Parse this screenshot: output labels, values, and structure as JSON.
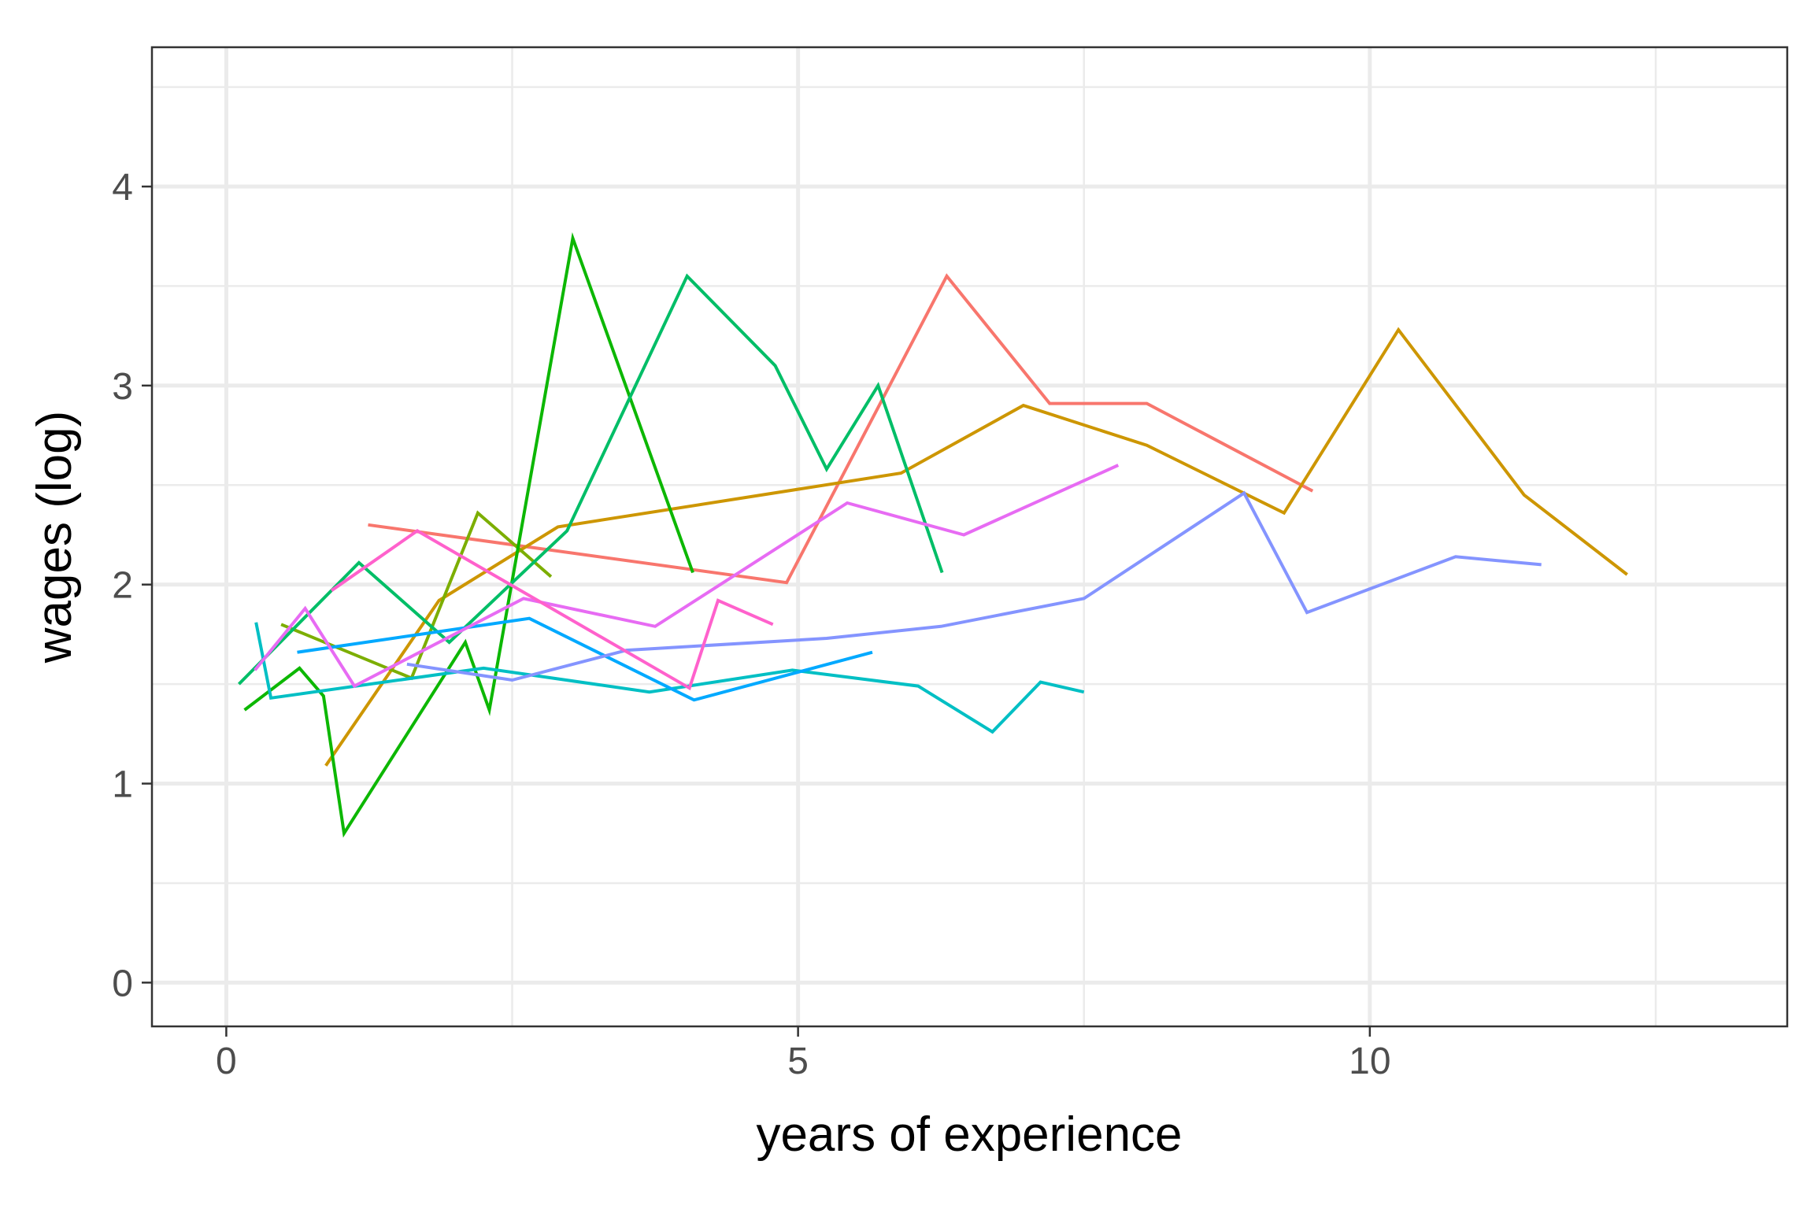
{
  "chart_data": {
    "type": "line",
    "title": "",
    "xlabel": "years of experience",
    "ylabel": "wages (log)",
    "xlim": [
      -0.65,
      13.65
    ],
    "ylim": [
      -0.22,
      4.7
    ],
    "x_ticks": [
      0,
      5,
      10
    ],
    "y_ticks": [
      0,
      1,
      2,
      3,
      4
    ],
    "grid": true,
    "legend": "none",
    "series": [
      {
        "color": "#F8766D",
        "x": [
          1.24,
          4.9,
          6.3,
          7.2,
          8.05,
          9.5
        ],
        "y": [
          2.3,
          2.01,
          3.55,
          2.91,
          2.91,
          2.47
        ]
      },
      {
        "color": "#CD9600",
        "x": [
          0.87,
          1.86,
          2.9,
          5.9,
          6.97,
          8.05,
          9.25,
          10.25,
          11.35,
          12.25
        ],
        "y": [
          1.09,
          1.92,
          2.29,
          2.56,
          2.9,
          2.7,
          2.36,
          3.28,
          2.45,
          2.05
        ]
      },
      {
        "color": "#7CAE00",
        "x": [
          0.48,
          1.62,
          2.2,
          2.84
        ],
        "y": [
          1.8,
          1.53,
          2.36,
          2.04
        ]
      },
      {
        "color": "#0CB702",
        "x": [
          0.16,
          0.64,
          0.85,
          1.03,
          2.09,
          2.3,
          3.03,
          4.08
        ],
        "y": [
          1.37,
          1.58,
          1.44,
          0.75,
          1.71,
          1.37,
          3.74,
          2.06
        ]
      },
      {
        "color": "#00BE67",
        "x": [
          0.11,
          1.16,
          1.95,
          2.98,
          4.03,
          4.8,
          5.25,
          5.7,
          6.26
        ],
        "y": [
          1.5,
          2.11,
          1.71,
          2.27,
          3.55,
          3.1,
          2.58,
          3.0,
          2.06
        ]
      },
      {
        "color": "#00BFC4",
        "x": [
          0.26,
          0.39,
          2.25,
          3.7,
          4.95,
          6.05,
          6.7,
          7.12,
          7.5
        ],
        "y": [
          1.81,
          1.43,
          1.58,
          1.46,
          1.57,
          1.49,
          1.26,
          1.51,
          1.46
        ]
      },
      {
        "color": "#00A9FF",
        "x": [
          0.62,
          2.65,
          4.09,
          5.65
        ],
        "y": [
          1.66,
          1.83,
          1.42,
          1.66
        ]
      },
      {
        "color": "#8494FF",
        "x": [
          1.58,
          2.5,
          3.5,
          5.25,
          6.25,
          7.5,
          8.9,
          9.45,
          10.75,
          11.5
        ],
        "y": [
          1.6,
          1.52,
          1.67,
          1.73,
          1.79,
          1.93,
          2.46,
          1.86,
          2.14,
          2.1
        ]
      },
      {
        "color": "#E76BF3",
        "x": [
          0.25,
          0.69,
          1.12,
          2.6,
          3.75,
          5.43,
          6.45,
          7.8
        ],
        "y": [
          1.57,
          1.88,
          1.49,
          1.93,
          1.79,
          2.41,
          2.25,
          2.6
        ]
      },
      {
        "color": "#FF61CC",
        "x": [
          0.92,
          1.67,
          4.05,
          4.3,
          4.78
        ],
        "y": [
          1.97,
          2.27,
          1.48,
          1.92,
          1.8
        ]
      }
    ]
  }
}
